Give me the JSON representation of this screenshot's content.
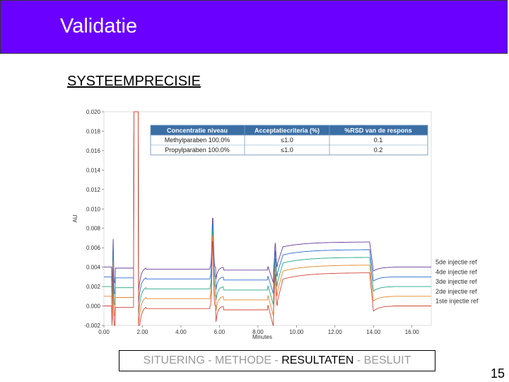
{
  "header": {
    "title": "Validatie"
  },
  "section": {
    "title": "SYSTEEMPRECISIE"
  },
  "nav": {
    "item1": "SITUERING",
    "sep1": " - ",
    "item2": "METHODE",
    "sep2": " - ",
    "item3": "RESULTATEN",
    "sep3": " - ",
    "item4": "BESLUIT"
  },
  "page_number": "15",
  "colors": {
    "header_bg": "#6a00ff",
    "table_header": "#3a6ea5",
    "table_border": "#7a9cc0"
  },
  "chart_data": {
    "type": "line",
    "title": "",
    "xlabel": "Minutes",
    "ylabel": "AU",
    "xlim": [
      0.0,
      17.0
    ],
    "ylim": [
      -0.002,
      0.02
    ],
    "x_ticks": [
      "0.00",
      "2.00",
      "4.00",
      "6.00",
      "8.00",
      "10.00",
      "12.00",
      "14.00",
      "16.00"
    ],
    "y_ticks": [
      "-0.002",
      "0.000",
      "0.002",
      "0.004",
      "0.006",
      "0.008",
      "0.010",
      "0.012",
      "0.014",
      "0.016",
      "0.018",
      "0.020"
    ],
    "series": [
      {
        "name": "5de injectie ref",
        "color": "#6a3d9a",
        "offset": 0.004
      },
      {
        "name": "4de injectie ref",
        "color": "#2b6cd4",
        "offset": 0.003
      },
      {
        "name": "3de injectie ref",
        "color": "#22a884",
        "offset": 0.002
      },
      {
        "name": "2de injectie ref",
        "color": "#e6862a",
        "offset": 0.001
      },
      {
        "name": "1ste injectie ref",
        "color": "#d4463a",
        "offset": 0.0
      }
    ],
    "table": {
      "headers": [
        "Concentratie niveau",
        "Acceptatiecriteria (%)",
        "%RSD van de respons"
      ],
      "rows": [
        [
          "Methylparaben 100.0%",
          "≤1.0",
          "0.1"
        ],
        [
          "Propylparaben 100.0%",
          "≤1.0",
          "0.2"
        ]
      ]
    }
  }
}
